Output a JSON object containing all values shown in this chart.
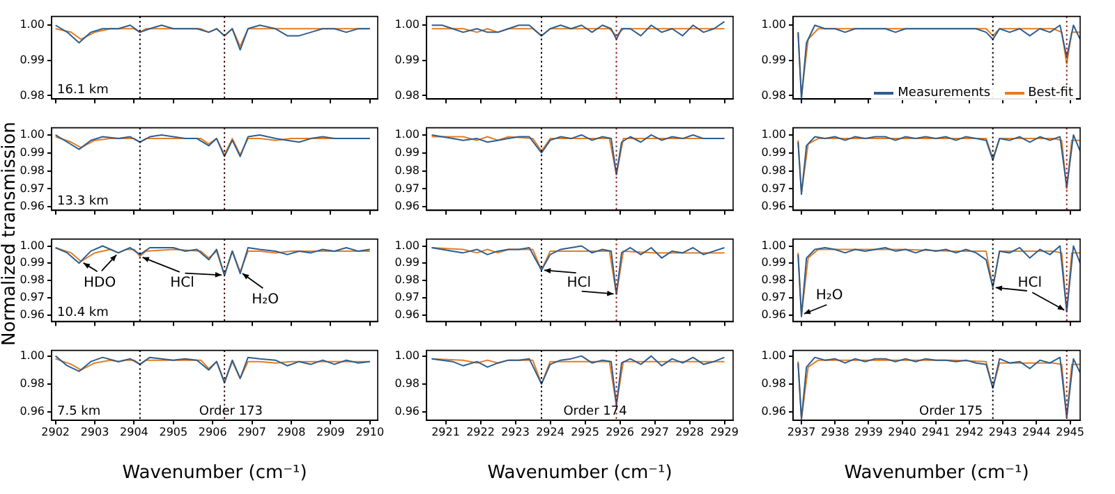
{
  "chart_data": [
    {
      "type": "line",
      "xlim": [
        2901.9,
        2910.2
      ],
      "xticks": [
        2902,
        2903,
        2904,
        2905,
        2906,
        2907,
        2908,
        2909,
        2910
      ],
      "ylim": [
        0.979,
        1.0025
      ],
      "yticks": [
        {
          "value": 0.98,
          "label": "0.98"
        },
        {
          "value": 0.99,
          "label": "0.99"
        },
        {
          "value": 1.0,
          "label": "1.00"
        }
      ],
      "tick_labels": "y",
      "annotations": [
        "16.1 km"
      ],
      "ref_lines": [
        {
          "axis": "x",
          "value": 2904.15,
          "color": "#000000",
          "line_style": "dotted"
        },
        {
          "axis": "x",
          "value": 2906.3,
          "color": "#3a0000",
          "line_style": "dotted"
        }
      ],
      "x": [
        2902.0,
        2902.3,
        2902.6,
        2902.9,
        2903.2,
        2903.6,
        2903.9,
        2904.15,
        2904.4,
        2904.7,
        2905.0,
        2905.3,
        2905.6,
        2905.9,
        2906.1,
        2906.3,
        2906.5,
        2906.7,
        2906.9,
        2907.2,
        2907.6,
        2907.9,
        2908.2,
        2908.5,
        2908.8,
        2909.1,
        2909.4,
        2909.7,
        2910.0
      ],
      "series": [
        {
          "color": "#2c5d8f",
          "values": [
            1.0,
            0.998,
            0.995,
            0.998,
            0.999,
            0.999,
            1.0,
            0.998,
            0.999,
            1.0,
            0.999,
            0.999,
            0.999,
            0.998,
            0.999,
            0.997,
            0.999,
            0.993,
            0.999,
            1.0,
            0.999,
            0.997,
            0.997,
            0.998,
            0.999,
            0.999,
            0.998,
            0.999,
            0.999
          ]
        },
        {
          "color": "#e37c22",
          "x": [
            2902.0,
            2902.4,
            2902.65,
            2903.0,
            2903.4,
            2903.6,
            2903.8,
            2904.0,
            2904.15,
            2904.3,
            2905.0,
            2905.7,
            2905.9,
            2906.1,
            2906.3,
            2906.5,
            2906.7,
            2906.9,
            2907.2,
            2907.6,
            2908.0,
            2909.0,
            2910.0
          ],
          "values": [
            0.999,
            0.998,
            0.996,
            0.998,
            0.999,
            0.999,
            0.999,
            0.999,
            0.998,
            0.999,
            0.999,
            0.999,
            0.998,
            0.999,
            0.997,
            0.999,
            0.994,
            0.999,
            0.999,
            0.999,
            0.999,
            0.999,
            0.999
          ]
        }
      ]
    },
    {
      "type": "line",
      "xlim": [
        2920.45,
        2929.25
      ],
      "xticks": [
        2921,
        2922,
        2923,
        2924,
        2925,
        2926,
        2927,
        2928,
        2929
      ],
      "ylim": [
        0.979,
        1.0025
      ],
      "yticks": [
        {
          "value": 0.98,
          "label": "0.98"
        },
        {
          "value": 0.99,
          "label": "0.99"
        },
        {
          "value": 1.0,
          "label": "1.00"
        }
      ],
      "tick_labels": "y",
      "ref_lines": [
        {
          "axis": "x",
          "value": 2923.75,
          "color": "#000000",
          "line_style": "dotted"
        },
        {
          "axis": "x",
          "value": 2925.9,
          "color": "#8b1a1a",
          "line_style": "dotted"
        }
      ],
      "x": [
        2920.6,
        2920.9,
        2921.2,
        2921.5,
        2921.9,
        2922.2,
        2922.5,
        2922.8,
        2923.1,
        2923.4,
        2923.75,
        2924.0,
        2924.3,
        2924.6,
        2924.9,
        2925.2,
        2925.5,
        2925.75,
        2925.9,
        2926.05,
        2926.3,
        2926.6,
        2926.9,
        2927.2,
        2927.5,
        2927.8,
        2928.1,
        2928.4,
        2928.7,
        2929.0
      ],
      "series": [
        {
          "color": "#2c5d8f",
          "values": [
            1.0,
            1.0,
            0.999,
            0.998,
            0.999,
            0.998,
            0.998,
            0.999,
            1.0,
            1.0,
            0.997,
            0.999,
            1.0,
            0.999,
            1.0,
            0.998,
            1.0,
            0.999,
            0.996,
            0.999,
            0.999,
            0.997,
            1.0,
            0.998,
            0.999,
            0.997,
            1.0,
            0.998,
            0.999,
            1.001
          ]
        },
        {
          "color": "#e37c22",
          "x": [
            2920.6,
            2921.5,
            2921.9,
            2922.2,
            2922.5,
            2922.8,
            2923.5,
            2923.75,
            2924.0,
            2925.0,
            2925.7,
            2925.9,
            2926.1,
            2927.0,
            2928.0,
            2929.0
          ],
          "values": [
            0.999,
            0.999,
            0.998,
            0.999,
            0.998,
            0.999,
            0.999,
            0.997,
            0.999,
            0.999,
            0.999,
            0.997,
            0.999,
            0.999,
            0.999,
            0.999
          ]
        }
      ]
    },
    {
      "type": "line",
      "xlim": [
        2936.75,
        2945.3
      ],
      "xticks": [
        2937,
        2938,
        2939,
        2940,
        2941,
        2942,
        2943,
        2944,
        2945
      ],
      "ylim": [
        0.979,
        1.0025
      ],
      "yticks": [
        {
          "value": 0.98,
          "label": "0.98"
        },
        {
          "value": 0.99,
          "label": "0.99"
        },
        {
          "value": 1.0,
          "label": "1.00"
        }
      ],
      "tick_labels": "y",
      "legend": "bottom right",
      "ref_lines": [
        {
          "axis": "x",
          "value": 2942.7,
          "color": "#000000",
          "line_style": "dotted"
        },
        {
          "axis": "x",
          "value": 2944.9,
          "color": "#8b1a1a",
          "line_style": "dotted"
        }
      ],
      "x": [
        2936.9,
        2937.0,
        2937.15,
        2937.4,
        2937.7,
        2938.0,
        2938.3,
        2938.6,
        2938.9,
        2939.2,
        2939.5,
        2939.8,
        2940.1,
        2940.4,
        2940.7,
        2941.0,
        2941.3,
        2941.6,
        2941.9,
        2942.2,
        2942.5,
        2942.7,
        2942.9,
        2943.2,
        2943.5,
        2943.8,
        2944.1,
        2944.4,
        2944.7,
        2944.9,
        2945.1,
        2945.3
      ],
      "series": [
        {
          "name": "Measurements",
          "color": "#2c5d8f",
          "values": [
            0.998,
            0.979,
            0.995,
            1.0,
            0.999,
            0.999,
            0.998,
            0.999,
            0.999,
            0.999,
            0.999,
            0.998,
            0.999,
            0.999,
            0.999,
            0.999,
            0.999,
            0.999,
            0.999,
            0.999,
            0.998,
            0.996,
            0.999,
            0.998,
            0.999,
            0.997,
            0.999,
            0.998,
            1.0,
            0.991,
            1.0,
            0.996
          ]
        },
        {
          "name": "Best-fit",
          "color": "#e37c22",
          "x": [
            2936.9,
            2937.0,
            2937.2,
            2937.5,
            2938.5,
            2940.0,
            2941.5,
            2942.5,
            2942.7,
            2942.9,
            2943.5,
            2944.5,
            2944.75,
            2944.9,
            2945.05,
            2945.3
          ],
          "values": [
            0.998,
            0.98,
            0.996,
            0.999,
            0.999,
            0.999,
            0.999,
            0.999,
            0.997,
            0.999,
            0.999,
            0.999,
            0.998,
            0.989,
            0.998,
            0.998
          ]
        }
      ]
    },
    {
      "type": "line",
      "xlim": [
        2901.9,
        2910.2
      ],
      "xticks": [
        2902,
        2903,
        2904,
        2905,
        2906,
        2907,
        2908,
        2909,
        2910
      ],
      "ylim": [
        0.958,
        1.004
      ],
      "yticks": [
        {
          "value": 0.96,
          "label": "0.96"
        },
        {
          "value": 0.97,
          "label": "0.97"
        },
        {
          "value": 0.98,
          "label": "0.98"
        },
        {
          "value": 0.99,
          "label": "0.99"
        },
        {
          "value": 1.0,
          "label": "1.00"
        }
      ],
      "tick_labels": "y",
      "annotations": [
        "13.3 km"
      ],
      "ylabel": "Normalized transmission",
      "ref_lines": [
        {
          "axis": "x",
          "value": 2904.15,
          "color": "#000000",
          "line_style": "dotted"
        },
        {
          "axis": "x",
          "value": 2906.3,
          "color": "#3a0000",
          "line_style": "dotted"
        }
      ],
      "x": [
        2902.0,
        2902.3,
        2902.6,
        2902.9,
        2903.2,
        2903.6,
        2903.9,
        2904.15,
        2904.4,
        2904.7,
        2905.0,
        2905.3,
        2905.6,
        2905.9,
        2906.1,
        2906.3,
        2906.5,
        2906.7,
        2906.9,
        2907.2,
        2907.6,
        2907.9,
        2908.2,
        2908.5,
        2908.8,
        2909.1,
        2909.4,
        2909.7,
        2910.0
      ],
      "series": [
        {
          "color": "#2c5d8f",
          "values": [
            1.0,
            0.996,
            0.992,
            0.997,
            0.999,
            0.998,
            0.999,
            0.996,
            0.999,
            1.0,
            0.999,
            0.998,
            0.998,
            0.994,
            0.998,
            0.988,
            0.997,
            0.988,
            0.999,
            1.0,
            0.998,
            0.997,
            0.996,
            0.998,
            0.999,
            0.998,
            0.998,
            0.998,
            0.998
          ]
        },
        {
          "color": "#e37c22",
          "x": [
            2902.0,
            2902.4,
            2902.65,
            2903.0,
            2903.4,
            2903.6,
            2903.8,
            2904.0,
            2904.15,
            2904.3,
            2905.0,
            2905.7,
            2905.9,
            2906.1,
            2906.3,
            2906.5,
            2906.7,
            2906.9,
            2907.2,
            2907.6,
            2908.0,
            2909.0,
            2910.0
          ],
          "values": [
            0.999,
            0.996,
            0.993,
            0.997,
            0.998,
            0.998,
            0.998,
            0.998,
            0.996,
            0.998,
            0.998,
            0.998,
            0.995,
            0.998,
            0.989,
            0.998,
            0.989,
            0.998,
            0.998,
            0.997,
            0.998,
            0.998,
            0.998
          ]
        }
      ]
    },
    {
      "type": "line",
      "xlim": [
        2920.45,
        2929.25
      ],
      "xticks": [
        2921,
        2922,
        2923,
        2924,
        2925,
        2926,
        2927,
        2928,
        2929
      ],
      "ylim": [
        0.958,
        1.004
      ],
      "yticks": [
        {
          "value": 0.96,
          "label": "0.96"
        },
        {
          "value": 0.97,
          "label": "0.97"
        },
        {
          "value": 0.98,
          "label": "0.98"
        },
        {
          "value": 0.99,
          "label": "0.99"
        },
        {
          "value": 1.0,
          "label": "1.00"
        }
      ],
      "tick_labels": "y",
      "ref_lines": [
        {
          "axis": "x",
          "value": 2923.75,
          "color": "#000000",
          "line_style": "dotted"
        },
        {
          "axis": "x",
          "value": 2925.9,
          "color": "#8b1a1a",
          "line_style": "dotted"
        }
      ],
      "x": [
        2920.6,
        2920.9,
        2921.2,
        2921.5,
        2921.9,
        2922.2,
        2922.5,
        2922.8,
        2923.1,
        2923.4,
        2923.75,
        2924.0,
        2924.3,
        2924.6,
        2924.9,
        2925.2,
        2925.5,
        2925.75,
        2925.9,
        2926.05,
        2926.3,
        2926.6,
        2926.9,
        2927.2,
        2927.5,
        2927.8,
        2928.1,
        2928.4,
        2928.7,
        2929.0
      ],
      "series": [
        {
          "color": "#2c5d8f",
          "values": [
            1.0,
            0.999,
            0.998,
            0.997,
            0.998,
            0.996,
            0.997,
            0.998,
            0.999,
            0.999,
            0.99,
            0.997,
            0.999,
            0.998,
            1.0,
            0.997,
            0.999,
            0.998,
            0.978,
            0.996,
            0.999,
            0.996,
            1.0,
            0.997,
            0.999,
            0.998,
            1.0,
            0.998,
            0.998,
            0.998
          ]
        },
        {
          "color": "#e37c22",
          "x": [
            2920.6,
            2921.5,
            2921.9,
            2922.2,
            2922.5,
            2922.8,
            2923.5,
            2923.75,
            2924.0,
            2925.0,
            2925.7,
            2925.9,
            2926.1,
            2927.0,
            2928.0,
            2929.0
          ],
          "values": [
            0.999,
            0.999,
            0.997,
            0.999,
            0.997,
            0.999,
            0.998,
            0.991,
            0.998,
            0.998,
            0.998,
            0.978,
            0.998,
            0.998,
            0.998,
            0.998
          ]
        }
      ]
    },
    {
      "type": "line",
      "xlim": [
        2936.75,
        2945.3
      ],
      "xticks": [
        2937,
        2938,
        2939,
        2940,
        2941,
        2942,
        2943,
        2944,
        2945
      ],
      "ylim": [
        0.958,
        1.004
      ],
      "yticks": [
        {
          "value": 0.96,
          "label": "0.96"
        },
        {
          "value": 0.97,
          "label": "0.97"
        },
        {
          "value": 0.98,
          "label": "0.98"
        },
        {
          "value": 0.99,
          "label": "0.99"
        },
        {
          "value": 1.0,
          "label": "1.00"
        }
      ],
      "tick_labels": "y",
      "ref_lines": [
        {
          "axis": "x",
          "value": 2942.7,
          "color": "#000000",
          "line_style": "dotted"
        },
        {
          "axis": "x",
          "value": 2944.9,
          "color": "#8b1a1a",
          "line_style": "dotted"
        }
      ],
      "x": [
        2936.9,
        2937.0,
        2937.15,
        2937.4,
        2937.7,
        2938.0,
        2938.3,
        2938.6,
        2938.9,
        2939.2,
        2939.5,
        2939.8,
        2940.1,
        2940.4,
        2940.7,
        2941.0,
        2941.3,
        2941.6,
        2941.9,
        2942.2,
        2942.5,
        2942.7,
        2942.9,
        2943.2,
        2943.5,
        2943.8,
        2944.1,
        2944.4,
        2944.7,
        2944.9,
        2945.1,
        2945.3
      ],
      "series": [
        {
          "color": "#2c5d8f",
          "values": [
            0.996,
            0.967,
            0.994,
            0.999,
            0.998,
            0.999,
            0.997,
            0.999,
            0.998,
            0.999,
            0.999,
            0.997,
            0.999,
            0.998,
            0.999,
            0.998,
            0.999,
            0.997,
            0.999,
            0.998,
            0.997,
            0.986,
            0.998,
            0.997,
            0.999,
            0.996,
            0.999,
            0.997,
            0.999,
            0.971,
            1.0,
            0.991
          ]
        },
        {
          "color": "#e37c22",
          "x": [
            2936.9,
            2937.0,
            2937.2,
            2937.5,
            2938.5,
            2940.0,
            2941.5,
            2942.5,
            2942.7,
            2942.9,
            2943.5,
            2944.5,
            2944.75,
            2944.9,
            2945.05,
            2945.3
          ],
          "values": [
            0.997,
            0.968,
            0.995,
            0.998,
            0.998,
            0.998,
            0.998,
            0.998,
            0.987,
            0.998,
            0.998,
            0.998,
            0.997,
            0.97,
            0.997,
            0.997
          ]
        }
      ]
    },
    {
      "type": "line",
      "xlim": [
        2901.9,
        2910.2
      ],
      "xticks": [
        2902,
        2903,
        2904,
        2905,
        2906,
        2907,
        2908,
        2909,
        2910
      ],
      "ylim": [
        0.956,
        1.004
      ],
      "yticks": [
        {
          "value": 0.96,
          "label": "0.96"
        },
        {
          "value": 0.97,
          "label": "0.97"
        },
        {
          "value": 0.98,
          "label": "0.98"
        },
        {
          "value": 0.99,
          "label": "0.99"
        },
        {
          "value": 1.0,
          "label": "1.00"
        }
      ],
      "tick_labels": "y",
      "annotations": [
        "10.4 km",
        {
          "text": "HDO",
          "x": 2902.65,
          "y": 0.991
        },
        {
          "text": "HCl",
          "x": 2904.15,
          "y": 0.994
        },
        {
          "text": "H₂O",
          "x": 2906.7,
          "y": 0.985
        }
      ],
      "ref_lines": [
        {
          "axis": "x",
          "value": 2904.15,
          "color": "#000000",
          "line_style": "dotted"
        },
        {
          "axis": "x",
          "value": 2906.3,
          "color": "#3a0000",
          "line_style": "dotted"
        }
      ],
      "x": [
        2902.0,
        2902.3,
        2902.6,
        2902.9,
        2903.2,
        2903.6,
        2903.9,
        2904.15,
        2904.4,
        2904.7,
        2905.0,
        2905.3,
        2905.6,
        2905.9,
        2906.1,
        2906.3,
        2906.5,
        2906.7,
        2906.9,
        2907.2,
        2907.6,
        2907.9,
        2908.2,
        2908.5,
        2908.8,
        2909.1,
        2909.4,
        2909.7,
        2910.0
      ],
      "series": [
        {
          "color": "#2c5d8f",
          "values": [
            0.999,
            0.996,
            0.99,
            0.997,
            1.0,
            0.996,
            0.999,
            0.995,
            0.999,
            0.999,
            0.999,
            0.997,
            0.998,
            0.992,
            0.998,
            0.983,
            0.997,
            0.984,
            0.999,
            0.998,
            0.997,
            0.995,
            0.997,
            0.996,
            0.998,
            0.997,
            0.999,
            0.997,
            0.998
          ]
        },
        {
          "color": "#e37c22",
          "x": [
            2902.0,
            2902.4,
            2902.65,
            2903.0,
            2903.4,
            2903.6,
            2903.8,
            2904.0,
            2904.15,
            2904.3,
            2905.0,
            2905.7,
            2905.9,
            2906.1,
            2906.3,
            2906.5,
            2906.7,
            2906.9,
            2907.2,
            2907.6,
            2908.0,
            2909.0,
            2910.0
          ],
          "values": [
            0.999,
            0.996,
            0.991,
            0.996,
            0.998,
            0.996,
            0.998,
            0.998,
            0.994,
            0.997,
            0.998,
            0.997,
            0.993,
            0.997,
            0.983,
            0.997,
            0.985,
            0.997,
            0.997,
            0.996,
            0.997,
            0.997,
            0.997
          ]
        }
      ]
    },
    {
      "type": "line",
      "xlim": [
        2920.45,
        2929.25
      ],
      "xticks": [
        2921,
        2922,
        2923,
        2924,
        2925,
        2926,
        2927,
        2928,
        2929
      ],
      "ylim": [
        0.956,
        1.004
      ],
      "yticks": [
        {
          "value": 0.96,
          "label": "0.96"
        },
        {
          "value": 0.97,
          "label": "0.97"
        },
        {
          "value": 0.98,
          "label": "0.98"
        },
        {
          "value": 0.99,
          "label": "0.99"
        },
        {
          "value": 1.0,
          "label": "1.00"
        }
      ],
      "tick_labels": "y",
      "annotations": [
        {
          "text": "HCl",
          "x": 2923.75,
          "y": 0.986
        }
      ],
      "ref_lines": [
        {
          "axis": "x",
          "value": 2923.75,
          "color": "#000000",
          "line_style": "dotted"
        },
        {
          "axis": "x",
          "value": 2925.9,
          "color": "#8b1a1a",
          "line_style": "dotted"
        }
      ],
      "x": [
        2920.6,
        2920.9,
        2921.2,
        2921.5,
        2921.9,
        2922.2,
        2922.5,
        2922.8,
        2923.1,
        2923.4,
        2923.75,
        2924.0,
        2924.3,
        2924.6,
        2924.9,
        2925.2,
        2925.5,
        2925.75,
        2925.9,
        2926.05,
        2926.3,
        2926.6,
        2926.9,
        2927.2,
        2927.5,
        2927.8,
        2928.1,
        2928.4,
        2928.7,
        2929.0
      ],
      "series": [
        {
          "color": "#2c5d8f",
          "values": [
            0.999,
            0.998,
            0.997,
            0.996,
            0.998,
            0.995,
            0.997,
            0.998,
            0.998,
            0.999,
            0.986,
            0.995,
            0.998,
            0.999,
            1.0,
            0.996,
            0.998,
            0.997,
            0.972,
            0.996,
            0.999,
            0.995,
            0.999,
            0.993,
            0.997,
            0.996,
            0.999,
            0.995,
            0.997,
            0.999
          ]
        },
        {
          "color": "#e37c22",
          "x": [
            2920.6,
            2921.5,
            2921.9,
            2922.2,
            2922.5,
            2922.8,
            2923.5,
            2923.75,
            2924.0,
            2925.0,
            2925.7,
            2925.9,
            2926.1,
            2927.0,
            2928.0,
            2929.0
          ],
          "values": [
            0.999,
            0.998,
            0.996,
            0.998,
            0.996,
            0.998,
            0.998,
            0.986,
            0.997,
            0.997,
            0.997,
            0.972,
            0.997,
            0.996,
            0.996,
            0.996
          ]
        }
      ]
    },
    {
      "type": "line",
      "xlim": [
        2936.75,
        2945.3
      ],
      "xticks": [
        2937,
        2938,
        2939,
        2940,
        2941,
        2942,
        2943,
        2944,
        2945
      ],
      "ylim": [
        0.956,
        1.004
      ],
      "yticks": [
        {
          "value": 0.96,
          "label": "0.96"
        },
        {
          "value": 0.97,
          "label": "0.97"
        },
        {
          "value": 0.98,
          "label": "0.98"
        },
        {
          "value": 0.99,
          "label": "0.99"
        },
        {
          "value": 1.0,
          "label": "1.00"
        }
      ],
      "tick_labels": "y",
      "annotations": [
        {
          "text": "H₂O",
          "x": 2937.0,
          "y": 0.96
        },
        {
          "text": "HCl",
          "x": 2942.7,
          "y": 0.976
        }
      ],
      "ref_lines": [
        {
          "axis": "x",
          "value": 2942.7,
          "color": "#000000",
          "line_style": "dotted"
        },
        {
          "axis": "x",
          "value": 2944.9,
          "color": "#8b1a1a",
          "line_style": "dotted"
        }
      ],
      "x": [
        2936.9,
        2937.0,
        2937.15,
        2937.4,
        2937.7,
        2938.0,
        2938.3,
        2938.6,
        2938.9,
        2939.2,
        2939.5,
        2939.8,
        2940.1,
        2940.4,
        2940.7,
        2941.0,
        2941.3,
        2941.6,
        2941.9,
        2942.2,
        2942.5,
        2942.7,
        2942.9,
        2943.2,
        2943.5,
        2943.8,
        2944.1,
        2944.4,
        2944.7,
        2944.9,
        2945.1,
        2945.3
      ],
      "series": [
        {
          "color": "#2c5d8f",
          "values": [
            0.995,
            0.959,
            0.993,
            0.998,
            0.999,
            0.998,
            0.996,
            0.998,
            0.997,
            0.998,
            0.999,
            0.997,
            0.998,
            0.996,
            0.998,
            0.997,
            0.998,
            0.996,
            0.998,
            0.996,
            0.992,
            0.976,
            0.997,
            0.996,
            0.999,
            0.993,
            0.998,
            0.995,
            1.0,
            0.962,
            1.0,
            0.99
          ]
        },
        {
          "color": "#e37c22",
          "x": [
            2936.9,
            2937.0,
            2937.2,
            2937.5,
            2938.5,
            2940.0,
            2941.5,
            2942.5,
            2942.7,
            2942.9,
            2943.5,
            2944.5,
            2944.75,
            2944.9,
            2945.05,
            2945.3
          ],
          "values": [
            0.996,
            0.96,
            0.993,
            0.998,
            0.998,
            0.998,
            0.997,
            0.997,
            0.976,
            0.997,
            0.997,
            0.997,
            0.996,
            0.962,
            0.996,
            0.996
          ]
        }
      ]
    },
    {
      "type": "line",
      "xlim": [
        2901.9,
        2910.2
      ],
      "xticks": [
        2902,
        2903,
        2904,
        2905,
        2906,
        2907,
        2908,
        2909,
        2910
      ],
      "ylim": [
        0.954,
        1.004
      ],
      "yticks": [
        {
          "value": 0.96,
          "label": "0.96"
        },
        {
          "value": 0.98,
          "label": "0.98"
        },
        {
          "value": 1.0,
          "label": "1.00"
        }
      ],
      "xlabel": "Wavenumber (cm⁻¹)",
      "annotations": [
        "7.5 km",
        "Order 173"
      ],
      "ref_lines": [
        {
          "axis": "x",
          "value": 2904.15,
          "color": "#000000",
          "line_style": "dotted"
        },
        {
          "axis": "x",
          "value": 2906.3,
          "color": "#3a0000",
          "line_style": "dotted"
        }
      ],
      "x": [
        2902.0,
        2902.3,
        2902.6,
        2902.9,
        2903.2,
        2903.6,
        2903.9,
        2904.15,
        2904.4,
        2904.7,
        2905.0,
        2905.3,
        2905.6,
        2905.9,
        2906.1,
        2906.3,
        2906.5,
        2906.7,
        2906.9,
        2907.2,
        2907.6,
        2907.9,
        2908.2,
        2908.5,
        2908.8,
        2909.1,
        2909.4,
        2909.7,
        2910.0
      ],
      "series": [
        {
          "color": "#2c5d8f",
          "values": [
            1.0,
            0.993,
            0.989,
            0.996,
            0.999,
            0.996,
            0.998,
            0.994,
            0.999,
            0.998,
            0.997,
            0.998,
            0.997,
            0.99,
            0.996,
            0.981,
            0.997,
            0.984,
            0.999,
            0.998,
            0.997,
            0.993,
            0.996,
            0.994,
            0.997,
            0.994,
            0.997,
            0.995,
            0.996
          ]
        },
        {
          "color": "#e37c22",
          "x": [
            2902.0,
            2902.4,
            2902.65,
            2903.0,
            2903.4,
            2903.6,
            2903.8,
            2904.0,
            2904.15,
            2904.3,
            2905.0,
            2905.7,
            2905.9,
            2906.1,
            2906.3,
            2906.5,
            2906.7,
            2906.9,
            2907.2,
            2907.6,
            2908.0,
            2909.0,
            2910.0
          ],
          "values": [
            0.998,
            0.994,
            0.99,
            0.995,
            0.997,
            0.996,
            0.997,
            0.997,
            0.994,
            0.997,
            0.997,
            0.997,
            0.991,
            0.996,
            0.981,
            0.996,
            0.984,
            0.996,
            0.996,
            0.995,
            0.996,
            0.996,
            0.996
          ]
        }
      ]
    },
    {
      "type": "line",
      "xlim": [
        2920.45,
        2929.25
      ],
      "xticks": [
        2921,
        2922,
        2923,
        2924,
        2925,
        2926,
        2927,
        2928,
        2929
      ],
      "ylim": [
        0.954,
        1.004
      ],
      "yticks": [
        {
          "value": 0.96,
          "label": "0.96"
        },
        {
          "value": 0.98,
          "label": "0.98"
        },
        {
          "value": 1.0,
          "label": "1.00"
        }
      ],
      "xlabel": "Wavenumber (cm⁻¹)",
      "annotations": [
        "Order 174"
      ],
      "ref_lines": [
        {
          "axis": "x",
          "value": 2923.75,
          "color": "#000000",
          "line_style": "dotted"
        },
        {
          "axis": "x",
          "value": 2925.9,
          "color": "#8b1a1a",
          "line_style": "dotted"
        }
      ],
      "x": [
        2920.6,
        2920.9,
        2921.2,
        2921.5,
        2921.9,
        2922.2,
        2922.5,
        2922.8,
        2923.1,
        2923.4,
        2923.75,
        2924.0,
        2924.3,
        2924.6,
        2924.9,
        2925.2,
        2925.5,
        2925.75,
        2925.9,
        2926.05,
        2926.3,
        2926.6,
        2926.9,
        2927.2,
        2927.5,
        2927.8,
        2928.1,
        2928.4,
        2928.7,
        2929.0
      ],
      "series": [
        {
          "color": "#2c5d8f",
          "values": [
            0.998,
            0.997,
            0.996,
            0.993,
            0.996,
            0.992,
            0.995,
            0.997,
            0.997,
            0.998,
            0.98,
            0.994,
            0.997,
            0.998,
            1.0,
            0.995,
            0.997,
            0.996,
            0.965,
            0.995,
            0.998,
            0.994,
            1.0,
            0.993,
            0.998,
            0.995,
            0.999,
            0.994,
            0.996,
            0.999
          ]
        },
        {
          "color": "#e37c22",
          "x": [
            2920.6,
            2921.5,
            2921.9,
            2922.2,
            2922.5,
            2922.8,
            2923.5,
            2923.75,
            2924.0,
            2925.0,
            2925.7,
            2925.9,
            2926.1,
            2927.0,
            2928.0,
            2929.0
          ],
          "values": [
            0.998,
            0.997,
            0.995,
            0.997,
            0.995,
            0.997,
            0.997,
            0.98,
            0.996,
            0.996,
            0.996,
            0.965,
            0.996,
            0.996,
            0.996,
            0.996
          ]
        }
      ]
    },
    {
      "type": "line",
      "xlim": [
        2936.75,
        2945.3
      ],
      "xticks": [
        2937,
        2938,
        2939,
        2940,
        2941,
        2942,
        2943,
        2944,
        2945
      ],
      "ylim": [
        0.954,
        1.004
      ],
      "yticks": [
        {
          "value": 0.96,
          "label": "0.96"
        },
        {
          "value": 0.98,
          "label": "0.98"
        },
        {
          "value": 1.0,
          "label": "1.00"
        }
      ],
      "xlabel": "Wavenumber (cm⁻¹)",
      "annotations": [
        "Order 175"
      ],
      "ref_lines": [
        {
          "axis": "x",
          "value": 2942.7,
          "color": "#000000",
          "line_style": "dotted"
        },
        {
          "axis": "x",
          "value": 2944.9,
          "color": "#8b1a1a",
          "line_style": "dotted"
        }
      ],
      "x": [
        2936.9,
        2937.0,
        2937.15,
        2937.4,
        2937.7,
        2938.0,
        2938.3,
        2938.6,
        2938.9,
        2939.2,
        2939.5,
        2939.8,
        2940.1,
        2940.4,
        2940.7,
        2941.0,
        2941.3,
        2941.6,
        2941.9,
        2942.2,
        2942.5,
        2942.7,
        2942.9,
        2943.2,
        2943.5,
        2943.8,
        2944.1,
        2944.4,
        2944.7,
        2944.9,
        2945.1,
        2945.3
      ],
      "series": [
        {
          "color": "#2c5d8f",
          "values": [
            0.995,
            0.955,
            0.992,
            0.999,
            0.997,
            0.998,
            0.995,
            0.998,
            0.996,
            0.998,
            0.998,
            0.996,
            0.998,
            0.996,
            0.998,
            0.997,
            0.997,
            0.996,
            0.997,
            0.995,
            0.994,
            0.977,
            0.998,
            0.995,
            0.996,
            0.991,
            0.997,
            0.995,
            0.999,
            0.956,
            0.998,
            0.988
          ]
        },
        {
          "color": "#e37c22",
          "x": [
            2936.9,
            2937.0,
            2937.2,
            2937.5,
            2938.5,
            2940.0,
            2941.5,
            2942.5,
            2942.7,
            2942.9,
            2943.5,
            2944.5,
            2944.75,
            2944.9,
            2945.05,
            2945.3
          ],
          "values": [
            0.996,
            0.955,
            0.992,
            0.997,
            0.997,
            0.997,
            0.997,
            0.996,
            0.977,
            0.995,
            0.995,
            0.995,
            0.994,
            0.956,
            0.994,
            0.994
          ]
        }
      ]
    }
  ]
}
